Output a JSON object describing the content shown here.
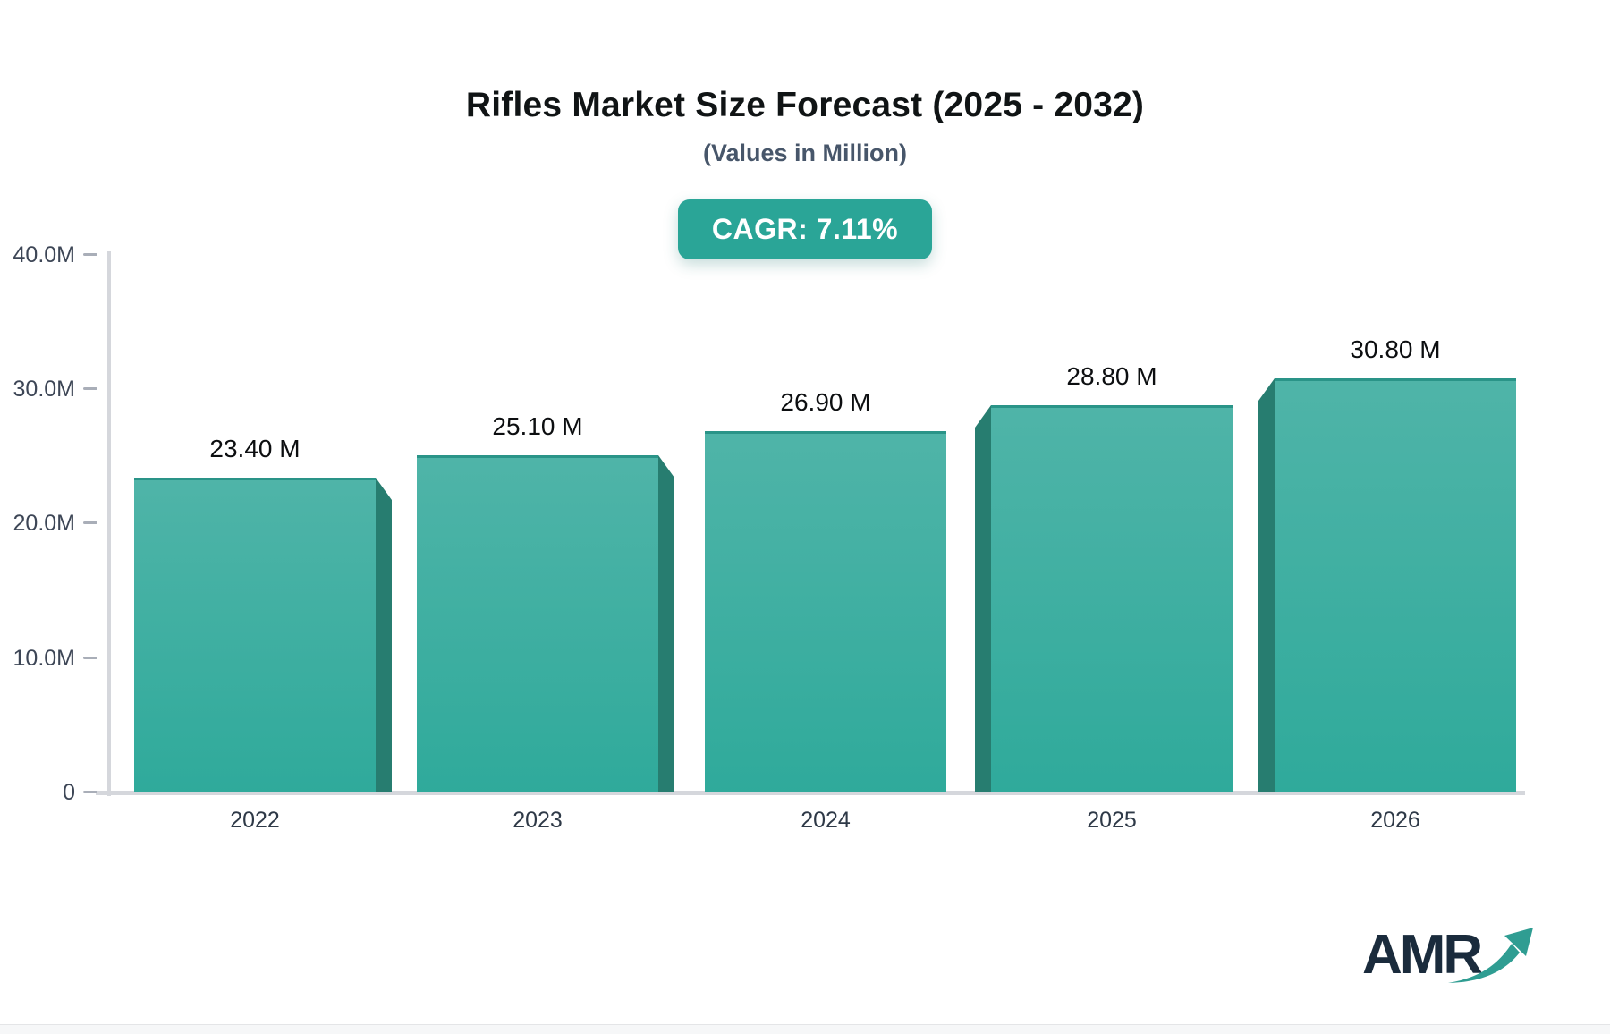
{
  "header": {
    "title": "Rifles Market Size Forecast (2025 - 2032)",
    "subtitle": "(Values in Million)",
    "cagr_badge": "CAGR: 7.11%"
  },
  "chart_data": {
    "type": "bar",
    "title": "Rifles Market Size Forecast (2025 - 2032)",
    "subtitle": "(Values in Million)",
    "unit": "Million",
    "cagr": "7.11%",
    "categories": [
      "2022",
      "2023",
      "2024",
      "2025",
      "2026"
    ],
    "values": [
      23.4,
      25.1,
      26.9,
      28.8,
      30.8
    ],
    "bar_labels": [
      "23.40 M",
      "25.10 M",
      "26.90 M",
      "28.80 M",
      "30.80 M"
    ],
    "yticks": [
      {
        "label": "0",
        "value": 0
      },
      {
        "label": "10.0M",
        "value": 10
      },
      {
        "label": "20.0M",
        "value": 20
      },
      {
        "label": "30.0M",
        "value": 30
      },
      {
        "label": "40.0M",
        "value": 40
      }
    ],
    "ylim": [
      0,
      40
    ],
    "grid": false,
    "legend": false,
    "colors": {
      "bar_top": "#4fb4a8",
      "bar_bottom": "#2faa9b",
      "bar_edge": "#2a9488",
      "bar_side": "#277d70",
      "badge_bg": "#2aa597",
      "axis": "#d5d7dc",
      "tick": "#a9aeb8",
      "tick_label": "#3d4656",
      "year_label": "#2e3947",
      "value_label": "#0c0e10",
      "logo_text": "#1a2b3c",
      "logo_arrow": "#2f9d92"
    }
  },
  "logo": {
    "text": "AMR"
  }
}
